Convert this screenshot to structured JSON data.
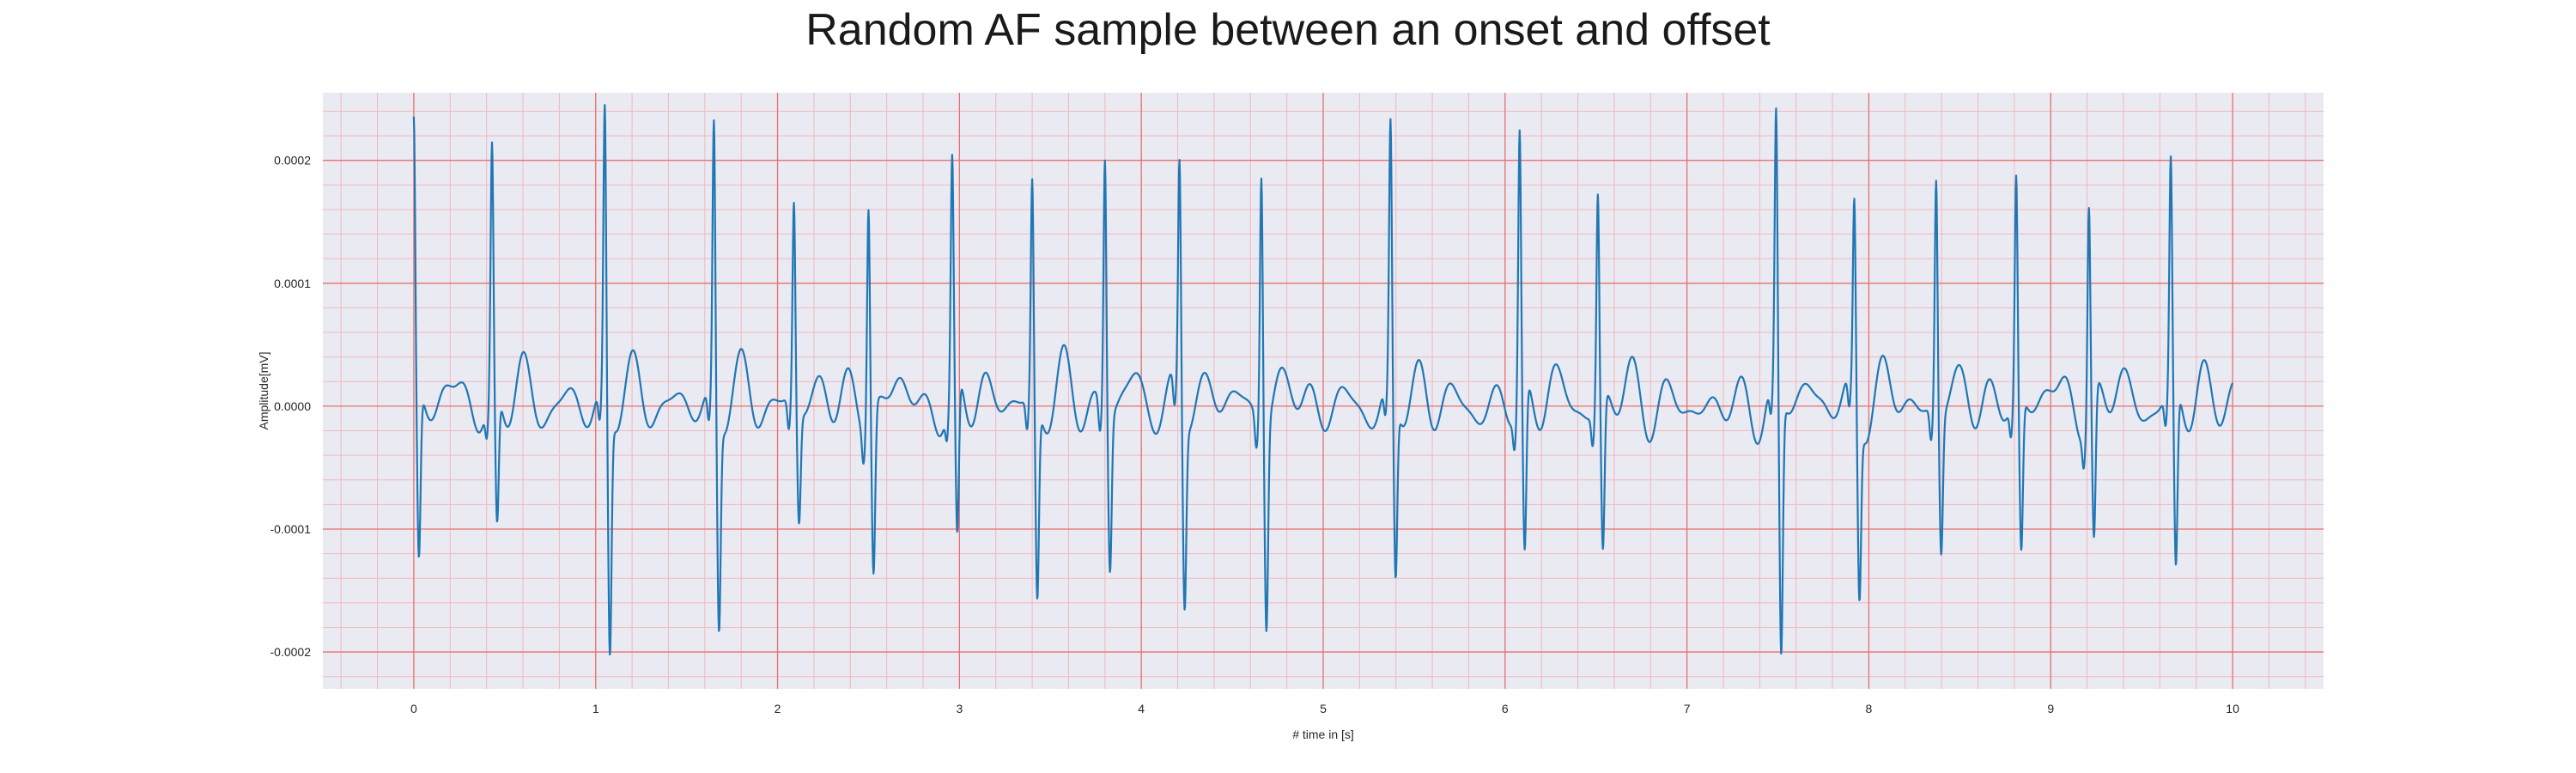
{
  "chart_data": {
    "type": "line",
    "title": "Random AF sample between an onset and offset",
    "xlabel": "# time in [s]",
    "ylabel": "Amplitude[mV]",
    "xlim": [
      -0.5,
      10.5
    ],
    "ylim": [
      -0.00023,
      0.000255
    ],
    "xticks": [
      0,
      1,
      2,
      3,
      4,
      5,
      6,
      7,
      8,
      9,
      10
    ],
    "xtick_labels": [
      "0",
      "1",
      "2",
      "3",
      "4",
      "5",
      "6",
      "7",
      "8",
      "9",
      "10"
    ],
    "yticks": [
      0.0002,
      0.0001,
      0.0,
      -0.0001,
      -0.0002
    ],
    "ytick_labels": [
      "0.0002",
      "0.0001",
      "0.0000",
      "-0.0001",
      "-0.0002"
    ],
    "grid": true,
    "minor_grid": true,
    "colors": {
      "background": "#eaeaf2",
      "line": "#1f77b4",
      "major_grid": "#e8716e",
      "minor_grid": "#f1b8bd"
    },
    "sampling_interval": 0.01,
    "beats": [
      {
        "t": 0.0,
        "r": 0.000218,
        "s": -0.00014
      },
      {
        "t": 0.43,
        "r": 0.0002,
        "s": -0.000108
      },
      {
        "t": 1.05,
        "r": 0.000235,
        "s": -0.000197
      },
      {
        "t": 1.65,
        "r": 0.000228,
        "s": -0.000171
      },
      {
        "t": 2.09,
        "r": 0.000163,
        "s": -9.2e-05
      },
      {
        "t": 2.5,
        "r": 0.000178,
        "s": -0.000134
      },
      {
        "t": 2.96,
        "r": 0.000183,
        "s": -0.000133
      },
      {
        "t": 3.4,
        "r": 0.000178,
        "s": -0.000158
      },
      {
        "t": 3.8,
        "r": 0.000208,
        "s": -0.000125
      },
      {
        "t": 4.21,
        "r": 0.000195,
        "s": -0.000151
      },
      {
        "t": 4.66,
        "r": 0.000206,
        "s": -0.000165
      },
      {
        "t": 5.37,
        "r": 0.000215,
        "s": -0.000144
      },
      {
        "t": 6.08,
        "r": 0.000218,
        "s": -0.000138
      },
      {
        "t": 6.51,
        "r": 0.000171,
        "s": -0.000128
      },
      {
        "t": 7.49,
        "r": 0.000223,
        "s": -0.00021
      },
      {
        "t": 7.92,
        "r": 0.000157,
        "s": -0.000146
      },
      {
        "t": 8.37,
        "r": 0.00019,
        "s": -0.000113
      },
      {
        "t": 8.81,
        "r": 0.000179,
        "s": -0.000126
      },
      {
        "t": 9.21,
        "r": 0.000169,
        "s": -0.000122
      },
      {
        "t": 9.66,
        "r": 0.000185,
        "s": -0.000148
      }
    ],
    "series": [
      {
        "fibrillatory_waves": [
          {
            "freq": 5.1,
            "amp": 1.4e-05,
            "phase": 0.3
          },
          {
            "freq": 6.7,
            "amp": 1e-05,
            "phase": 1.7
          },
          {
            "freq": 3.3,
            "amp": 7e-06,
            "phase": 2.4
          }
        ],
        "t_end": 10.0
      }
    ]
  }
}
